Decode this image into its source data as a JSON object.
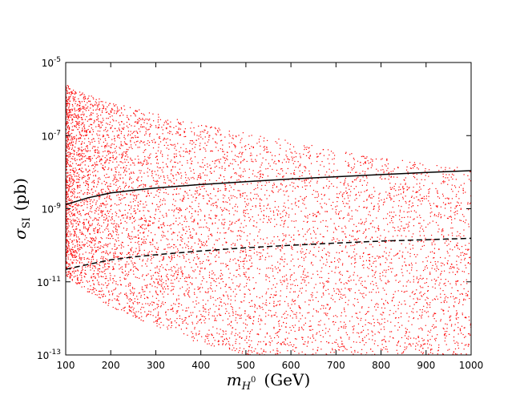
{
  "chart_data": {
    "type": "scatter",
    "title": "",
    "xlabel": {
      "symbol": "m",
      "sub": "H",
      "subsup": "0",
      "unit": "(GeV)"
    },
    "ylabel": {
      "symbol": "σ",
      "sub": "SI",
      "unit": "(pb)"
    },
    "xlim": [
      100,
      1000
    ],
    "ylim": [
      1e-13,
      1e-05
    ],
    "yscale": "log",
    "grid": false,
    "legend": "none",
    "x_ticks": [
      "100",
      "200",
      "300",
      "400",
      "500",
      "600",
      "700",
      "800",
      "900",
      "1000"
    ],
    "y_ticks": [
      {
        "base": "10",
        "exp": "-13"
      },
      {
        "base": "10",
        "exp": "-11"
      },
      {
        "base": "10",
        "exp": "-9"
      },
      {
        "base": "10",
        "exp": "-7"
      },
      {
        "base": "10",
        "exp": "-5"
      }
    ],
    "scatter_color": "#ff0000",
    "scatter_envelope": {
      "note_points_randomly_distributed_between": true,
      "x": [
        100,
        150,
        200,
        300,
        400,
        500,
        600,
        700,
        800,
        900,
        1000
      ],
      "upper": [
        2.5e-06,
        1.3e-06,
        8e-07,
        4e-07,
        2e-07,
        1.2e-07,
        7e-08,
        4e-08,
        2.5e-08,
        1.8e-08,
        1.2e-08
      ],
      "lower": [
        1.5e-11,
        5e-12,
        2e-12,
        6e-13,
        2e-13,
        1e-13,
        1e-13,
        1e-13,
        1e-13,
        1e-13,
        1e-13
      ]
    },
    "series": [
      {
        "style": "solid",
        "color": "#000000",
        "x": [
          100,
          150,
          200,
          250,
          300,
          400,
          500,
          600,
          700,
          800,
          900,
          1000
        ],
        "y": [
          1.3e-09,
          2e-09,
          2.7e-09,
          3.2e-09,
          3.7e-09,
          4.6e-09,
          5.5e-09,
          6.5e-09,
          7.5e-09,
          8.6e-09,
          9.8e-09,
          1.1e-08
        ]
      },
      {
        "style": "dashed",
        "color": "#000000",
        "x": [
          100,
          150,
          200,
          250,
          300,
          400,
          500,
          600,
          700,
          800,
          900,
          1000
        ],
        "y": [
          2.2e-11,
          3e-11,
          4e-11,
          4.8e-11,
          5.5e-11,
          7e-11,
          8.5e-11,
          1e-10,
          1.15e-10,
          1.3e-10,
          1.42e-10,
          1.55e-10
        ]
      }
    ]
  }
}
